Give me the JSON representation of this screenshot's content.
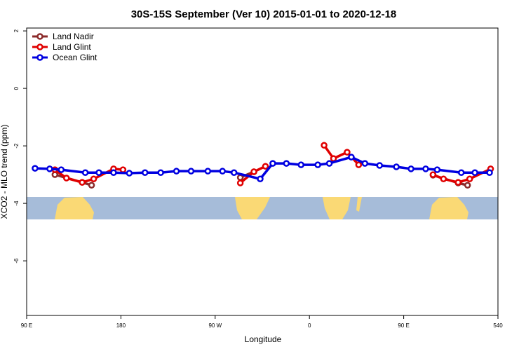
{
  "chart_data": {
    "type": "line",
    "title": "30S-15S September (Ver 10)   2015-01-01 to 2020-12-18",
    "x_label": "Longitude",
    "y_label": "XCO2 - MLO trend (ppm)",
    "xlim": [
      90,
      540
    ],
    "ylim": [
      -7.9,
      2.1
    ],
    "xticks": [
      {
        "value": 90,
        "label": "90 E"
      },
      180,
      {
        "value": 270,
        "label": "90 W"
      },
      {
        "value": 360,
        "label": "0"
      },
      {
        "value": 450,
        "label": "90 E"
      },
      540
    ],
    "yticks": [
      2,
      0,
      -2,
      -4,
      -6
    ],
    "legend": "upper left",
    "series": [
      {
        "name": "Land Nadir",
        "color": "#8b2a2a",
        "x": [
          117,
          143,
          152,
          null,
          294,
          307,
          null,
          478,
          502,
          511
        ],
        "values": [
          -3.0,
          -3.27,
          -3.37,
          null,
          -3.1,
          -2.9,
          null,
          -3.02,
          -3.29,
          -3.37
        ]
      },
      {
        "name": "Land Glint",
        "color": "#e00000",
        "x": [
          117,
          128,
          143,
          154,
          173,
          182,
          null,
          294,
          307,
          318,
          null,
          374,
          383,
          396,
          407,
          null,
          478,
          488,
          502,
          513,
          533
        ],
        "values": [
          -2.83,
          -3.12,
          -3.27,
          -3.15,
          -2.8,
          -2.83,
          null,
          -3.29,
          -2.9,
          -2.71,
          null,
          -1.98,
          -2.44,
          -2.22,
          -2.66,
          null,
          -3.0,
          -3.15,
          -3.27,
          -3.15,
          -2.8
        ]
      },
      {
        "name": "Ocean Glint",
        "color": "#0000e0",
        "x": [
          98,
          112,
          123,
          146,
          159,
          173,
          188,
          203,
          218,
          233,
          247,
          263,
          277,
          288,
          313,
          325,
          338,
          352,
          368,
          379,
          400,
          413,
          427,
          443,
          457,
          471,
          482,
          505,
          518,
          532
        ],
        "values": [
          -2.78,
          -2.8,
          -2.83,
          -2.93,
          -2.93,
          -2.93,
          -2.95,
          -2.93,
          -2.93,
          -2.88,
          -2.88,
          -2.88,
          -2.88,
          -2.93,
          -3.15,
          -2.61,
          -2.61,
          -2.66,
          -2.66,
          -2.61,
          -2.39,
          -2.61,
          -2.68,
          -2.73,
          -2.8,
          -2.8,
          -2.83,
          -2.93,
          -2.93,
          -2.93
        ]
      }
    ]
  }
}
